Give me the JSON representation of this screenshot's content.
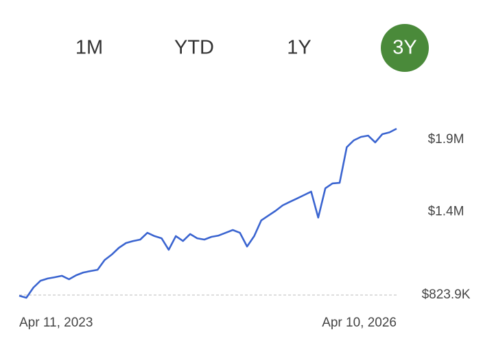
{
  "periods": [
    "1M",
    "YTD",
    "1Y",
    "3Y"
  ],
  "selected_period": "3Y",
  "chart_data": {
    "type": "line",
    "categories": [
      "Apr 11, 2023",
      null,
      null,
      null,
      null,
      null,
      null,
      null,
      null,
      null,
      null,
      null,
      null,
      null,
      null,
      null,
      null,
      null,
      null,
      null,
      null,
      null,
      null,
      null,
      null,
      null,
      null,
      null,
      null,
      null,
      null,
      null,
      null,
      null,
      null,
      null,
      null,
      null,
      null,
      null,
      null,
      null,
      null,
      null,
      null,
      null,
      null,
      null,
      null,
      null,
      null,
      null,
      null,
      "Apr 10, 2026"
    ],
    "series": [
      {
        "color": "#3a64d0",
        "values": [
          819000,
          805000,
          876000,
          923000,
          938000,
          947000,
          957000,
          933000,
          961000,
          980000,
          990000,
          999000,
          1066000,
          1104000,
          1151000,
          1184000,
          1198000,
          1208000,
          1255000,
          1232000,
          1217000,
          1137000,
          1232000,
          1198000,
          1246000,
          1217000,
          1208000,
          1227000,
          1236000,
          1255000,
          1274000,
          1255000,
          1160000,
          1232000,
          1341000,
          1374000,
          1407000,
          1445000,
          1469000,
          1492000,
          1516000,
          1540000,
          1360000,
          1563000,
          1597000,
          1601000,
          1848000,
          1895000,
          1919000,
          1928000,
          1881000,
          1938000,
          1950000,
          1976000
        ]
      }
    ],
    "ylim": [
      757500,
      1990000
    ],
    "yticks": [
      {
        "value": 823900,
        "label": "$823.9K"
      },
      {
        "value": 1400000,
        "label": "$1.4M"
      },
      {
        "value": 1900000,
        "label": "$1.9M"
      }
    ],
    "grid": false
  }
}
